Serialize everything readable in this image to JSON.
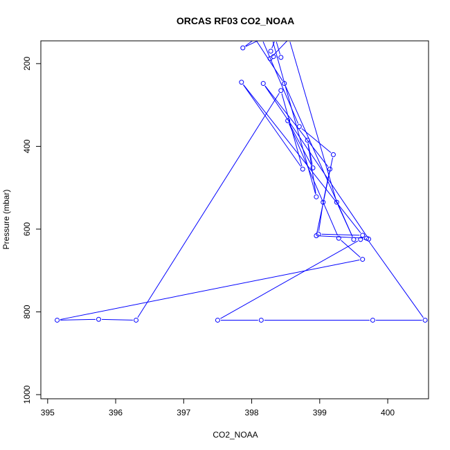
{
  "chart_data": {
    "type": "line",
    "title": "ORCAS RF03 CO2_NOAA",
    "xlabel": "CO2_NOAA",
    "ylabel": "Pressure (mbar)",
    "xlim": [
      394.9,
      400.6
    ],
    "ylim": [
      1010,
      145
    ],
    "y_reversed": true,
    "x_ticks": [
      395,
      396,
      397,
      398,
      399,
      400
    ],
    "y_ticks": [
      200,
      400,
      600,
      800,
      1000
    ],
    "grid": false,
    "series": [
      {
        "color": "#0000ff",
        "marker": "open-circle",
        "points": [
          [
            398.28,
            170
          ],
          [
            398.35,
            140
          ],
          [
            398.43,
            185
          ],
          [
            398.32,
            183
          ],
          [
            398.27,
            188
          ],
          [
            398.55,
            140
          ],
          [
            399.25,
            535
          ],
          [
            399.5,
            625
          ],
          [
            398.48,
            248
          ],
          [
            398.05,
            140
          ],
          [
            397.87,
            162
          ],
          [
            398.15,
            140
          ],
          [
            398.7,
            352
          ],
          [
            399.2,
            420
          ],
          [
            398.95,
            616
          ],
          [
            399.69,
            622
          ],
          [
            400.55,
            820
          ],
          [
            399.78,
            820
          ],
          [
            398.14,
            820
          ],
          [
            397.5,
            820
          ],
          [
            399.6,
            625
          ],
          [
            399.72,
            624
          ],
          [
            398.17,
            248
          ],
          [
            399.15,
            455
          ],
          [
            399.05,
            535
          ],
          [
            398.98,
            612
          ],
          [
            399.63,
            615
          ],
          [
            397.85,
            245
          ],
          [
            398.75,
            455
          ],
          [
            398.43,
            265
          ],
          [
            396.3,
            820
          ],
          [
            395.75,
            818
          ],
          [
            395.14,
            820
          ],
          [
            399.63,
            673
          ],
          [
            399.28,
            622
          ],
          [
            398.53,
            338
          ],
          [
            398.9,
            452
          ],
          [
            398.82,
            385
          ],
          [
            398.95,
            522
          ],
          [
            398.3,
            140
          ]
        ]
      }
    ]
  }
}
